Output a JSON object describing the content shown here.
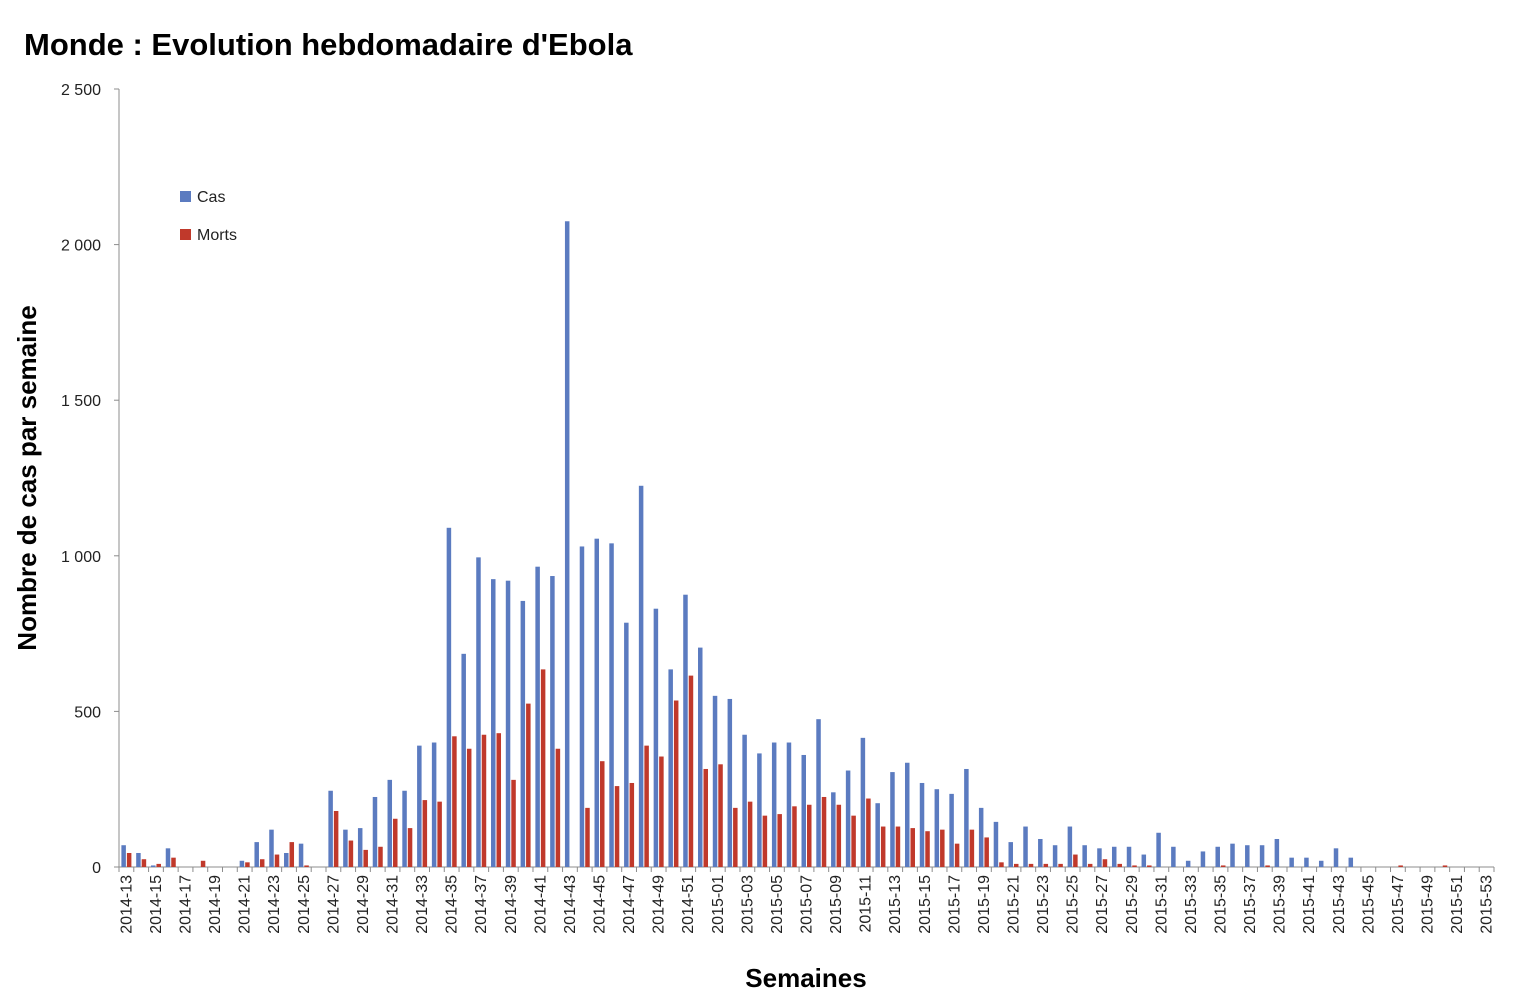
{
  "chart_data": {
    "type": "bar",
    "title": "Monde : Evolution hebdomadaire d'Ebola",
    "xlabel": "Semaines",
    "ylabel": "Nombre de cas par semaine",
    "ylim": [
      0,
      2500
    ],
    "yticks": [
      0,
      500,
      1000,
      1500,
      2000,
      2500
    ],
    "ytick_labels": [
      "0",
      "500",
      "1 000",
      "1 500",
      "2 000",
      "2 500"
    ],
    "grid": false,
    "legend_position": "top-left",
    "colors": {
      "cas": "#5B7BC0",
      "morts": "#C0392B"
    },
    "categories": [
      "2014-13",
      "2014-14",
      "2014-15",
      "2014-16",
      "2014-17",
      "2014-18",
      "2014-19",
      "2014-20",
      "2014-21",
      "2014-22",
      "2014-23",
      "2014-24",
      "2014-25",
      "2014-26",
      "2014-27",
      "2014-28",
      "2014-29",
      "2014-30",
      "2014-31",
      "2014-32",
      "2014-33",
      "2014-34",
      "2014-35",
      "2014-36",
      "2014-37",
      "2014-38",
      "2014-39",
      "2014-40",
      "2014-41",
      "2014-42",
      "2014-43",
      "2014-44",
      "2014-45",
      "2014-46",
      "2014-47",
      "2014-48",
      "2014-49",
      "2014-50",
      "2014-51",
      "2014-52",
      "2015-01",
      "2015-02",
      "2015-03",
      "2015-04",
      "2015-05",
      "2015-06",
      "2015-07",
      "2015-08",
      "2015-09",
      "2015-10",
      "2015-11",
      "2015-12",
      "2015-13",
      "2015-14",
      "2015-15",
      "2015-16",
      "2015-17",
      "2015-18",
      "2015-19",
      "2015-20",
      "2015-21",
      "2015-22",
      "2015-23",
      "2015-24",
      "2015-25",
      "2015-26",
      "2015-27",
      "2015-28",
      "2015-29",
      "2015-30",
      "2015-31",
      "2015-32",
      "2015-33",
      "2015-34",
      "2015-35",
      "2015-36",
      "2015-37",
      "2015-38",
      "2015-39",
      "2015-40",
      "2015-41",
      "2015-42",
      "2015-43",
      "2015-44",
      "2015-45",
      "2015-46",
      "2015-47",
      "2015-48",
      "2015-49",
      "2015-50",
      "2015-51",
      "2015-52",
      "2015-53"
    ],
    "tick_labels": [
      "2014-13",
      "2014-15",
      "2014-17",
      "2014-19",
      "2014-21",
      "2014-23",
      "2014-25",
      "2014-27",
      "2014-29",
      "2014-31",
      "2014-33",
      "2014-35",
      "2014-37",
      "2014-39",
      "2014-41",
      "2014-43",
      "2014-45",
      "2014-47",
      "2014-49",
      "2014-51",
      "2015-01",
      "2015-03",
      "2015-05",
      "2015-07",
      "2015-09",
      "2015-11",
      "2015-13",
      "2015-15",
      "2015-17",
      "2015-19",
      "2015-21",
      "2015-23",
      "2015-25",
      "2015-27",
      "2015-29",
      "2015-31",
      "2015-33",
      "2015-35",
      "2015-37",
      "2015-39",
      "2015-41",
      "2015-43",
      "2015-45",
      "2015-47",
      "2015-49",
      "2015-51",
      "2015-53"
    ],
    "series": [
      {
        "name": "Cas",
        "values": [
          70,
          45,
          5,
          60,
          0,
          0,
          0,
          0,
          20,
          80,
          120,
          45,
          75,
          0,
          245,
          120,
          125,
          225,
          280,
          245,
          390,
          400,
          1090,
          685,
          995,
          925,
          920,
          855,
          965,
          935,
          2075,
          1030,
          1055,
          1040,
          785,
          1225,
          830,
          635,
          875,
          705,
          550,
          540,
          425,
          365,
          400,
          400,
          360,
          475,
          240,
          310,
          415,
          205,
          305,
          335,
          270,
          250,
          235,
          315,
          190,
          145,
          80,
          130,
          90,
          70,
          130,
          70,
          60,
          65,
          65,
          40,
          110,
          65,
          20,
          50,
          65,
          75,
          70,
          70,
          90,
          30,
          30,
          20,
          60,
          30,
          0,
          0,
          0,
          0,
          0,
          0,
          0,
          0,
          0
        ]
      },
      {
        "name": "Morts",
        "values": [
          45,
          25,
          10,
          30,
          0,
          20,
          0,
          0,
          15,
          25,
          40,
          80,
          5,
          0,
          180,
          85,
          55,
          65,
          155,
          125,
          215,
          210,
          420,
          380,
          425,
          430,
          280,
          525,
          635,
          380,
          0,
          190,
          340,
          260,
          270,
          390,
          355,
          535,
          615,
          315,
          330,
          190,
          210,
          165,
          170,
          195,
          200,
          225,
          200,
          165,
          220,
          130,
          130,
          125,
          115,
          120,
          75,
          120,
          95,
          15,
          10,
          10,
          10,
          10,
          40,
          10,
          25,
          10,
          5,
          5,
          0,
          0,
          0,
          0,
          5,
          0,
          0,
          5,
          0,
          0,
          0,
          0,
          0,
          0,
          0,
          0,
          5,
          0,
          0,
          5,
          0,
          0,
          0
        ]
      }
    ]
  }
}
